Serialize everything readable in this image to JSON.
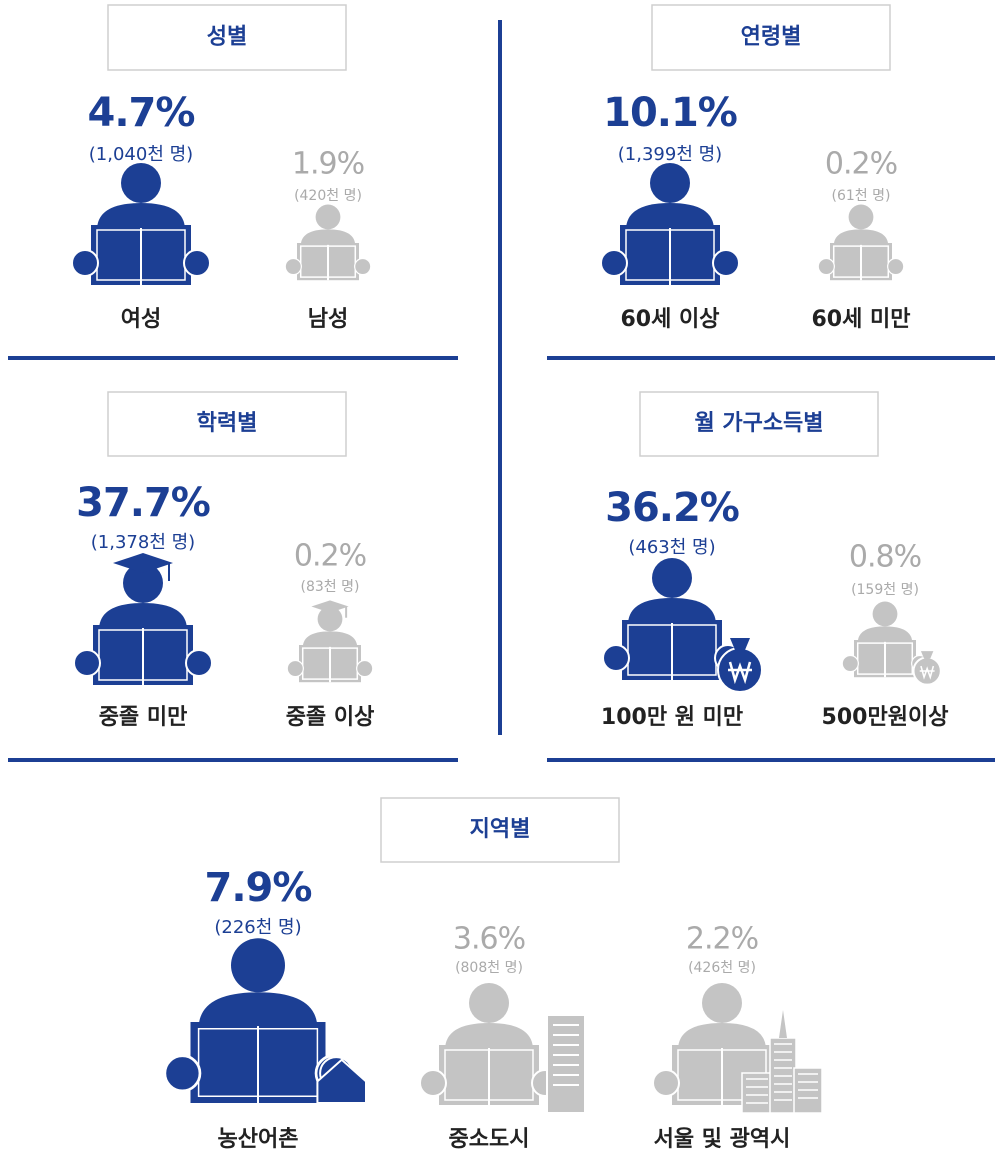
{
  "sections": [
    {
      "title": "성별",
      "items": [
        {
          "percent": "4.7%",
          "count": "(1,040천 명)",
          "label": "여성"
        },
        {
          "percent": "1.9%",
          "count": "(420천 명)",
          "label": "남성"
        }
      ]
    },
    {
      "title": "연령별",
      "items": [
        {
          "percent": "10.1%",
          "count": "(1,399천 명)",
          "label": "60세 이상"
        },
        {
          "percent": "0.2%",
          "count": "(61천 명)",
          "label": "60세 미만"
        }
      ]
    },
    {
      "title": "학력별",
      "items": [
        {
          "percent": "37.7%",
          "count": "(1,378천 명)",
          "label": "중졸 미만"
        },
        {
          "percent": "0.2%",
          "count": "(83천 명)",
          "label": "중졸 이상"
        }
      ]
    },
    {
      "title": "월 가구소득별",
      "items": [
        {
          "percent": "36.2%",
          "count": "(463천 명)",
          "label": "100만 원 미만"
        },
        {
          "percent": "0.8%",
          "count": "(159천 명)",
          "label": "500만원이상"
        }
      ]
    },
    {
      "title": "지역별",
      "items": [
        {
          "percent": "7.9%",
          "count": "(226천 명)",
          "label": "농산어촌"
        },
        {
          "percent": "3.6%",
          "count": "(808천 명)",
          "label": "중소도시"
        },
        {
          "percent": "2.2%",
          "count": "(426천 명)",
          "label": "서울 및 광역시"
        }
      ]
    }
  ]
}
